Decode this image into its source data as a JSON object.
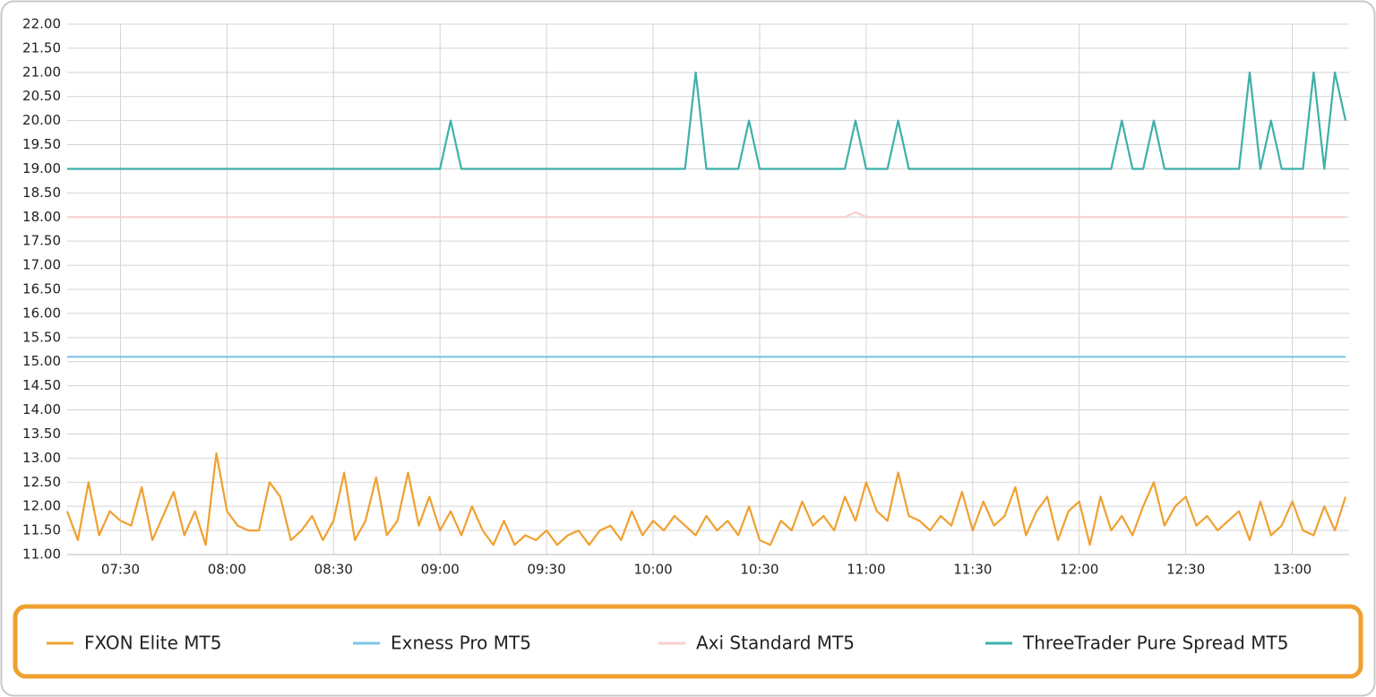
{
  "chart_data": {
    "type": "line",
    "x": [
      "07:15",
      "07:18",
      "07:21",
      "07:24",
      "07:27",
      "07:30",
      "07:33",
      "07:36",
      "07:39",
      "07:42",
      "07:45",
      "07:48",
      "07:51",
      "07:54",
      "07:57",
      "08:00",
      "08:03",
      "08:06",
      "08:09",
      "08:12",
      "08:15",
      "08:18",
      "08:21",
      "08:24",
      "08:27",
      "08:30",
      "08:33",
      "08:36",
      "08:39",
      "08:42",
      "08:45",
      "08:48",
      "08:51",
      "08:54",
      "08:57",
      "09:00",
      "09:03",
      "09:06",
      "09:09",
      "09:12",
      "09:15",
      "09:18",
      "09:21",
      "09:24",
      "09:27",
      "09:30",
      "09:33",
      "09:36",
      "09:39",
      "09:42",
      "09:45",
      "09:48",
      "09:51",
      "09:54",
      "09:57",
      "10:00",
      "10:03",
      "10:06",
      "10:09",
      "10:12",
      "10:15",
      "10:18",
      "10:21",
      "10:24",
      "10:27",
      "10:30",
      "10:33",
      "10:36",
      "10:39",
      "10:42",
      "10:45",
      "10:48",
      "10:51",
      "10:54",
      "10:57",
      "11:00",
      "11:03",
      "11:06",
      "11:09",
      "11:12",
      "11:15",
      "11:18",
      "11:21",
      "11:24",
      "11:27",
      "11:30",
      "11:33",
      "11:36",
      "11:39",
      "11:42",
      "11:45",
      "11:48",
      "11:51",
      "11:54",
      "11:57",
      "12:00",
      "12:03",
      "12:06",
      "12:09",
      "12:12",
      "12:15",
      "12:18",
      "12:21",
      "12:24",
      "12:27",
      "12:30",
      "12:33",
      "12:36",
      "12:39",
      "12:42",
      "12:45",
      "12:48",
      "12:51",
      "12:54",
      "12:57",
      "13:00",
      "13:03",
      "13:06",
      "13:09",
      "13:12",
      "13:15"
    ],
    "series": [
      {
        "name": "FXON Elite MT5",
        "color": "#f0a030",
        "values": [
          11.9,
          11.3,
          12.5,
          11.4,
          11.9,
          11.7,
          11.6,
          12.4,
          11.3,
          11.8,
          12.3,
          11.4,
          11.9,
          11.2,
          13.1,
          11.9,
          11.6,
          11.5,
          11.5,
          12.5,
          12.2,
          11.3,
          11.5,
          11.8,
          11.3,
          11.7,
          12.7,
          11.3,
          11.7,
          12.6,
          11.4,
          11.7,
          12.7,
          11.6,
          12.2,
          11.5,
          11.9,
          11.4,
          12.0,
          11.5,
          11.2,
          11.7,
          11.2,
          11.4,
          11.3,
          11.5,
          11.2,
          11.4,
          11.5,
          11.2,
          11.5,
          11.6,
          11.3,
          11.9,
          11.4,
          11.7,
          11.5,
          11.8,
          11.6,
          11.4,
          11.8,
          11.5,
          11.7,
          11.4,
          12.0,
          11.3,
          11.2,
          11.7,
          11.5,
          12.1,
          11.6,
          11.8,
          11.5,
          12.2,
          11.7,
          12.5,
          11.9,
          11.7,
          12.7,
          11.8,
          11.7,
          11.5,
          11.8,
          11.6,
          12.3,
          11.5,
          12.1,
          11.6,
          11.8,
          12.4,
          11.4,
          11.9,
          12.2,
          11.3,
          11.9,
          12.1,
          11.2,
          12.2,
          11.5,
          11.8,
          11.4,
          12.0,
          12.5,
          11.6,
          12.0,
          12.2,
          11.6,
          11.8,
          11.5,
          11.7,
          11.9,
          11.3,
          12.1,
          11.4,
          11.6,
          12.1,
          11.5,
          11.4,
          12.0,
          11.5,
          12.2
        ]
      },
      {
        "name": "Exness Pro MT5",
        "color": "#7ec4e4",
        "values": [
          15.1,
          15.1,
          15.1,
          15.1,
          15.1,
          15.1,
          15.1,
          15.1,
          15.1,
          15.1,
          15.1,
          15.1,
          15.1,
          15.1,
          15.1,
          15.1,
          15.1,
          15.1,
          15.1,
          15.1,
          15.1,
          15.1,
          15.1,
          15.1,
          15.1,
          15.1,
          15.1,
          15.1,
          15.1,
          15.1,
          15.1,
          15.1,
          15.1,
          15.1,
          15.1,
          15.1,
          15.1,
          15.1,
          15.1,
          15.1,
          15.1,
          15.1,
          15.1,
          15.1,
          15.1,
          15.1,
          15.1,
          15.1,
          15.1,
          15.1,
          15.1,
          15.1,
          15.1,
          15.1,
          15.1,
          15.1,
          15.1,
          15.1,
          15.1,
          15.1,
          15.1,
          15.1,
          15.1,
          15.1,
          15.1,
          15.1,
          15.1,
          15.1,
          15.1,
          15.1,
          15.1,
          15.1,
          15.1,
          15.1,
          15.1,
          15.1,
          15.1,
          15.1,
          15.1,
          15.1,
          15.1,
          15.1,
          15.1,
          15.1,
          15.1,
          15.1,
          15.1,
          15.1,
          15.1,
          15.1,
          15.1,
          15.1,
          15.1,
          15.1,
          15.1,
          15.1,
          15.1,
          15.1,
          15.1,
          15.1,
          15.1,
          15.1,
          15.1,
          15.1,
          15.1,
          15.1,
          15.1,
          15.1,
          15.1,
          15.1,
          15.1,
          15.1,
          15.1,
          15.1,
          15.1,
          15.1,
          15.1,
          15.1,
          15.1,
          15.1,
          15.1
        ]
      },
      {
        "name": "Axi Standard MT5",
        "color": "#f8cfcf",
        "values": [
          18,
          18,
          18,
          18,
          18,
          18,
          18,
          18,
          18,
          18,
          18,
          18,
          18,
          18,
          18,
          18,
          18,
          18,
          18,
          18,
          18,
          18,
          18,
          18,
          18,
          18,
          18,
          18,
          18,
          18,
          18,
          18,
          18,
          18,
          18,
          18,
          18,
          18,
          18,
          18,
          18,
          18,
          18,
          18,
          18,
          18,
          18,
          18,
          18,
          18,
          18,
          18,
          18,
          18,
          18,
          18,
          18,
          18,
          18,
          18,
          18,
          18,
          18,
          18,
          18,
          18,
          18,
          18,
          18,
          18,
          18,
          18,
          18,
          18,
          18.1,
          18,
          18,
          18,
          18,
          18,
          18,
          18,
          18,
          18,
          18,
          18,
          18,
          18,
          18,
          18,
          18,
          18,
          18,
          18,
          18,
          18,
          18,
          18,
          18,
          18,
          18,
          18,
          18,
          18,
          18,
          18,
          18,
          18,
          18,
          18,
          18,
          18,
          18,
          18,
          18,
          18,
          18,
          18,
          18,
          18,
          18
        ]
      },
      {
        "name": "ThreeTrader Pure Spread MT5",
        "color": "#3fb0a8",
        "values": [
          19,
          19,
          19,
          19,
          19,
          19,
          19,
          19,
          19,
          19,
          19,
          19,
          19,
          19,
          19,
          19,
          19,
          19,
          19,
          19,
          19,
          19,
          19,
          19,
          19,
          19,
          19,
          19,
          19,
          19,
          19,
          19,
          19,
          19,
          19,
          19,
          20,
          19,
          19,
          19,
          19,
          19,
          19,
          19,
          19,
          19,
          19,
          19,
          19,
          19,
          19,
          19,
          19,
          19,
          19,
          19,
          19,
          19,
          19,
          21,
          19,
          19,
          19,
          19,
          20,
          19,
          19,
          19,
          19,
          19,
          19,
          19,
          19,
          19,
          20,
          19,
          19,
          19,
          20,
          19,
          19,
          19,
          19,
          19,
          19,
          19,
          19,
          19,
          19,
          19,
          19,
          19,
          19,
          19,
          19,
          19,
          19,
          19,
          19,
          20,
          19,
          19,
          20,
          19,
          19,
          19,
          19,
          19,
          19,
          19,
          19,
          21,
          19,
          20,
          19,
          19,
          19,
          21,
          19,
          21,
          20
        ]
      }
    ],
    "xlim": [
      "07:15",
      "13:16"
    ],
    "xticks": [
      "07:30",
      "08:00",
      "08:30",
      "09:00",
      "09:30",
      "10:00",
      "10:30",
      "11:00",
      "11:30",
      "12:00",
      "12:30",
      "13:00"
    ],
    "ylim": [
      11,
      22
    ],
    "yticks": [
      {
        "value": 11,
        "label": "11.00"
      },
      {
        "value": 11.5,
        "label": "11.50"
      },
      {
        "value": 12,
        "label": "12.00"
      },
      {
        "value": 12.5,
        "label": "12.50"
      },
      {
        "value": 13,
        "label": "13.00"
      },
      {
        "value": 13.5,
        "label": "13.50"
      },
      {
        "value": 14,
        "label": "14.00"
      },
      {
        "value": 14.5,
        "label": "14.50"
      },
      {
        "value": 15,
        "label": "15.00"
      },
      {
        "value": 15.5,
        "label": "15.50"
      },
      {
        "value": 16,
        "label": "16.00"
      },
      {
        "value": 16.5,
        "label": "16.50"
      },
      {
        "value": 17,
        "label": "17.00"
      },
      {
        "value": 17.5,
        "label": "17.50"
      },
      {
        "value": 18,
        "label": "18.00"
      },
      {
        "value": 18.5,
        "label": "18.50"
      },
      {
        "value": 19,
        "label": "19.00"
      },
      {
        "value": 19.5,
        "label": "19.50"
      },
      {
        "value": 20,
        "label": "20.00"
      },
      {
        "value": 20.5,
        "label": "20.50"
      },
      {
        "value": 21,
        "label": "21.00"
      },
      {
        "value": 21.5,
        "label": "21.50"
      },
      {
        "value": 22,
        "label": "22.00"
      }
    ],
    "grid": true,
    "legend": "bottom"
  }
}
